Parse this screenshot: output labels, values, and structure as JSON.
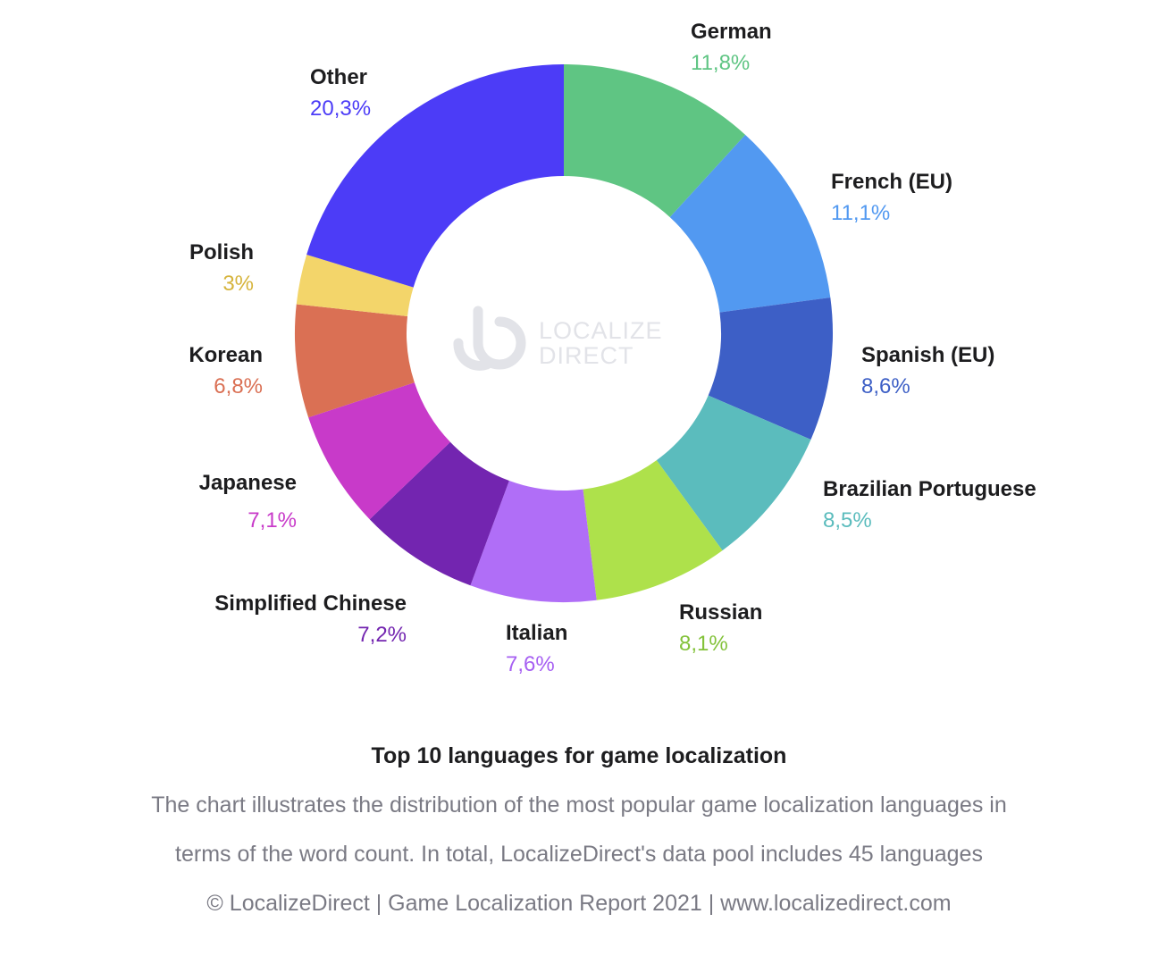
{
  "chart_data": {
    "type": "pie",
    "donut": true,
    "slices": [
      {
        "label": "German",
        "value": 11.8,
        "display": "11,8%",
        "color": "#5fc583"
      },
      {
        "label": "French (EU)",
        "value": 11.1,
        "display": "11,1%",
        "color": "#5299f1"
      },
      {
        "label": "Spanish (EU)",
        "value": 8.6,
        "display": "8,6%",
        "color": "#3d5fc6"
      },
      {
        "label": "Brazilian Portuguese",
        "value": 8.5,
        "display": "8,5%",
        "color": "#5bbcbd"
      },
      {
        "label": "Russian",
        "value": 8.1,
        "display": "8,1%",
        "color": "#aee14b"
      },
      {
        "label": "Italian",
        "value": 7.6,
        "display": "7,6%",
        "color": "#b06ef7"
      },
      {
        "label": "Simplified Chinese",
        "value": 7.2,
        "display": "7,2%",
        "color": "#7325b0"
      },
      {
        "label": "Japanese",
        "value": 7.1,
        "display": "7,1%",
        "color": "#c83ac9"
      },
      {
        "label": "Korean",
        "value": 6.8,
        "display": "6,8%",
        "color": "#da7054"
      },
      {
        "label": "Polish",
        "value": 3.0,
        "display": "3%",
        "color": "#f3d56a"
      },
      {
        "label": "Other",
        "value": 20.3,
        "display": "20,3%",
        "color": "#4c3cf7"
      }
    ],
    "label_colors": {
      "German": "#5fc583",
      "French (EU)": "#5299f1",
      "Spanish (EU)": "#3d5fc6",
      "Brazilian Portuguese": "#5bbcbd",
      "Russian": "#83c23a",
      "Italian": "#a65ff2",
      "Simplified Chinese": "#7325b0",
      "Japanese": "#c83ac9",
      "Korean": "#da7054",
      "Polish": "#d6b43c",
      "Other": "#4c3cf7"
    }
  },
  "watermark": {
    "line1": "LOCALIZE",
    "line2": "DIRECT",
    "icon": "localizedirect-logo-icon"
  },
  "caption": {
    "title": "Top 10 languages for game localization",
    "line1": "The chart illustrates the distribution of the most popular game localization languages in",
    "line2": "terms of the word count. In total, LocalizeDirect's data pool includes 45 languages",
    "footer": "© LocalizeDirect | Game Localization Report 2021 | www.localizedirect.com"
  }
}
